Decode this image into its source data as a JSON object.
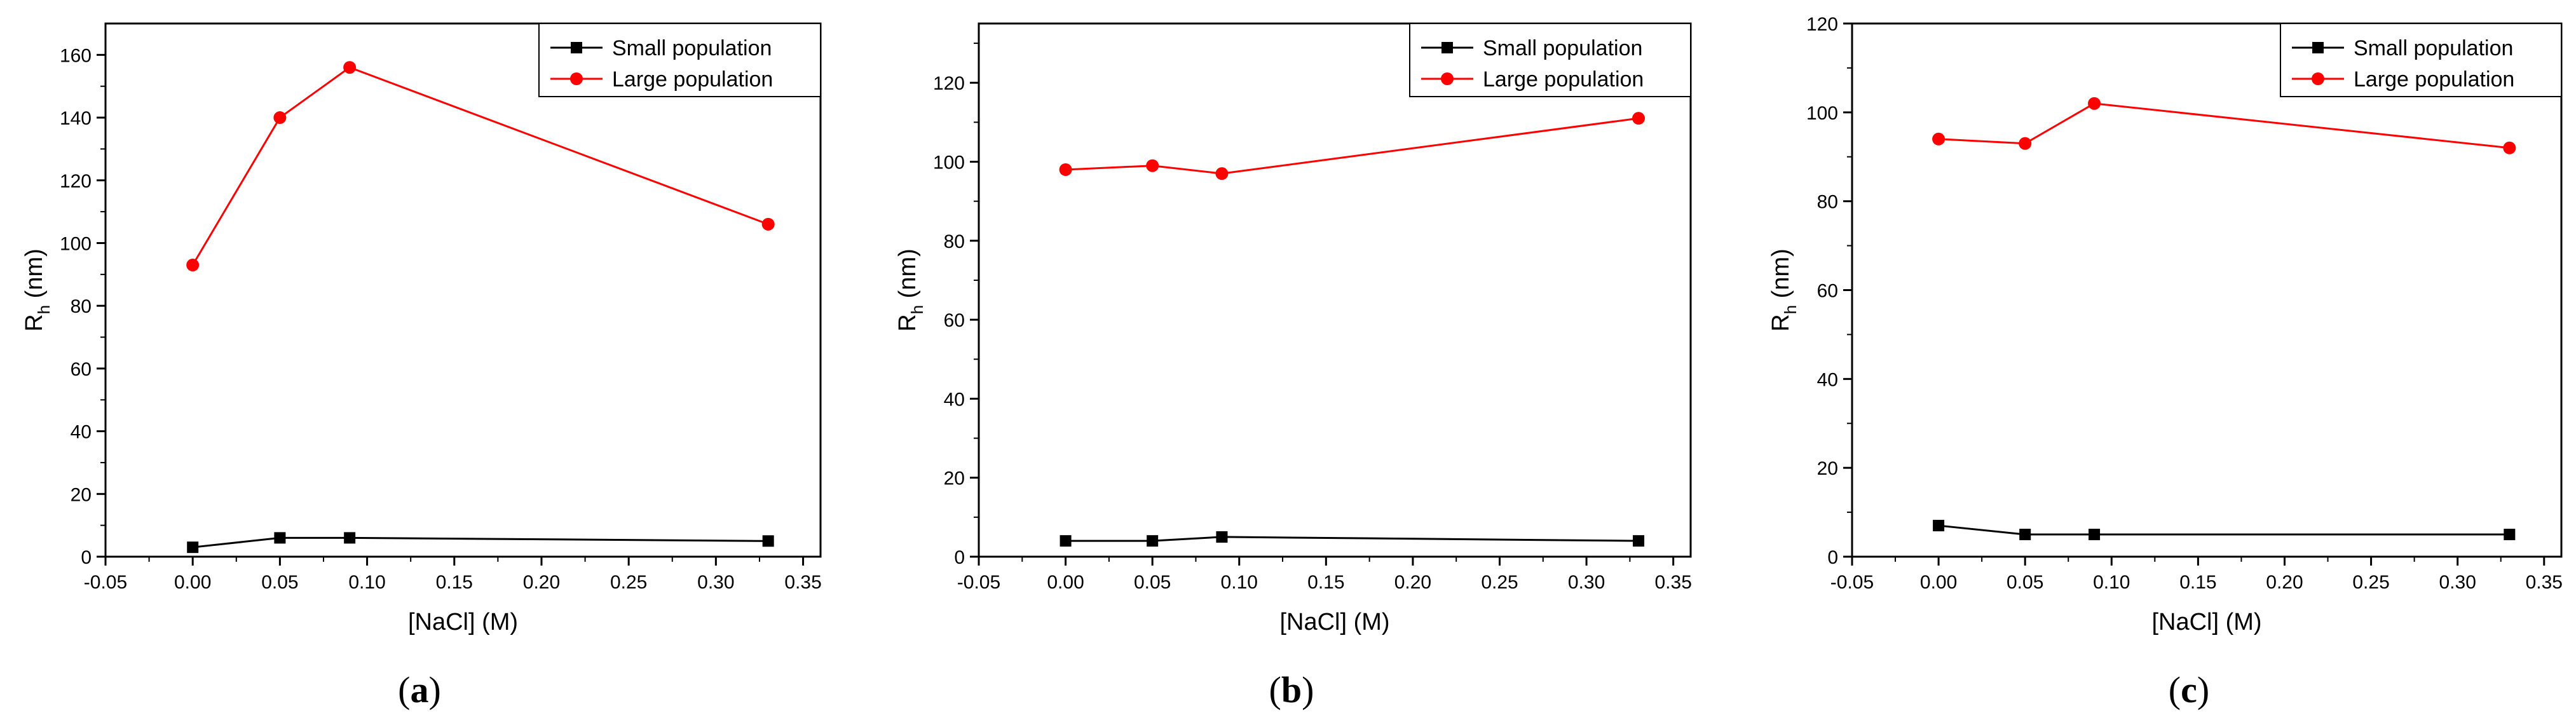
{
  "chart_data": [
    {
      "type": "line",
      "panel_label": "a",
      "xlabel": "[NaCl] (M)",
      "ylabel_main": "R",
      "ylabel_sub": "h",
      "ylabel_unit": " (nm)",
      "xlim": [
        -0.05,
        0.36
      ],
      "ylim": [
        0,
        170
      ],
      "xticks": [
        -0.05,
        0.0,
        0.05,
        0.1,
        0.15,
        0.2,
        0.25,
        0.3,
        0.35
      ],
      "xtick_labels": [
        "-0.05",
        "0.00",
        "0.05",
        "0.10",
        "0.15",
        "0.20",
        "0.25",
        "0.30",
        "0.35"
      ],
      "yticks": [
        0,
        20,
        40,
        60,
        80,
        100,
        120,
        140,
        160
      ],
      "ytick_labels": [
        "0",
        "20",
        "40",
        "60",
        "80",
        "100",
        "120",
        "140",
        "160"
      ],
      "legend_position": "top-right",
      "x": [
        0.0,
        0.05,
        0.09,
        0.33
      ],
      "series": [
        {
          "name": "Small population",
          "color": "#000000",
          "marker": "square",
          "values": [
            3,
            6,
            6,
            5
          ]
        },
        {
          "name": "Large population",
          "color": "#ff0000",
          "marker": "circle",
          "values": [
            93,
            140,
            156,
            106
          ]
        }
      ]
    },
    {
      "type": "line",
      "panel_label": "b",
      "xlabel": "[NaCl] (M)",
      "ylabel_main": "R",
      "ylabel_sub": "h",
      "ylabel_unit": " (nm)",
      "xlim": [
        -0.05,
        0.36
      ],
      "ylim": [
        0,
        135
      ],
      "xticks": [
        -0.05,
        0.0,
        0.05,
        0.1,
        0.15,
        0.2,
        0.25,
        0.3,
        0.35
      ],
      "xtick_labels": [
        "-0.05",
        "0.00",
        "0.05",
        "0.10",
        "0.15",
        "0.20",
        "0.25",
        "0.30",
        "0.35"
      ],
      "yticks": [
        0,
        20,
        40,
        60,
        80,
        100,
        120
      ],
      "ytick_labels": [
        "0",
        "20",
        "40",
        "60",
        "80",
        "100",
        "120"
      ],
      "legend_position": "top-right",
      "x": [
        0.0,
        0.05,
        0.09,
        0.33
      ],
      "series": [
        {
          "name": "Small population",
          "color": "#000000",
          "marker": "square",
          "values": [
            4,
            4,
            5,
            4
          ]
        },
        {
          "name": "Large population",
          "color": "#ff0000",
          "marker": "circle",
          "values": [
            98,
            99,
            97,
            111
          ]
        }
      ]
    },
    {
      "type": "line",
      "panel_label": "c",
      "xlabel": "[NaCl] (M)",
      "ylabel_main": "R",
      "ylabel_sub": "h",
      "ylabel_unit": " (nm)",
      "xlim": [
        -0.05,
        0.36
      ],
      "ylim": [
        0,
        120
      ],
      "xticks": [
        -0.05,
        0.0,
        0.05,
        0.1,
        0.15,
        0.2,
        0.25,
        0.3,
        0.35
      ],
      "xtick_labels": [
        "-0.05",
        "0.00",
        "0.05",
        "0.10",
        "0.15",
        "0.20",
        "0.25",
        "0.30",
        "0.35"
      ],
      "yticks": [
        0,
        20,
        40,
        60,
        80,
        100,
        120
      ],
      "ytick_labels": [
        "0",
        "20",
        "40",
        "60",
        "80",
        "100",
        "120"
      ],
      "legend_position": "top-right",
      "x": [
        0.0,
        0.05,
        0.09,
        0.33
      ],
      "series": [
        {
          "name": "Small population",
          "color": "#000000",
          "marker": "square",
          "values": [
            7,
            5,
            5,
            5
          ]
        },
        {
          "name": "Large population",
          "color": "#ff0000",
          "marker": "circle",
          "values": [
            94,
            93,
            102,
            92
          ]
        }
      ]
    }
  ]
}
